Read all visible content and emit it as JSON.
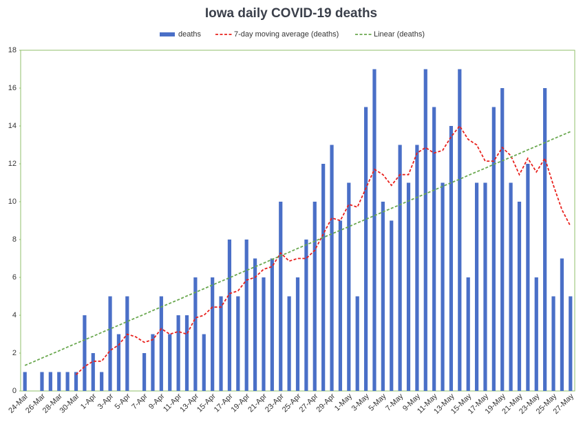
{
  "chart_data": {
    "type": "bar",
    "title": "Iowa daily COVID-19 deaths",
    "categories": [
      "24-Mar",
      null,
      "26-Mar",
      null,
      "28-Mar",
      null,
      "30-Mar",
      null,
      "1-Apr",
      null,
      "3-Apr",
      null,
      "5-Apr",
      null,
      "7-Apr",
      null,
      "9-Apr",
      null,
      "11-Apr",
      null,
      "13-Apr",
      null,
      "15-Apr",
      null,
      "17-Apr",
      null,
      "19-Apr",
      null,
      "21-Apr",
      null,
      "23-Apr",
      null,
      "25-Apr",
      null,
      "27-Apr",
      null,
      "29-Apr",
      null,
      "1-May",
      null,
      "3-May",
      null,
      "5-May",
      null,
      "7-May",
      null,
      "9-May",
      null,
      "11-May",
      null,
      "13-May",
      null,
      "15-May",
      null,
      "17-May",
      null,
      "19-May",
      null,
      "21-May",
      null,
      "23-May",
      null,
      "25-May",
      null,
      "27-May"
    ],
    "series": [
      {
        "name": "deaths",
        "type": "bar",
        "color": "#4a6fc7",
        "values": [
          1,
          0,
          1,
          1,
          1,
          1,
          1,
          4,
          2,
          1,
          5,
          3,
          5,
          0,
          2,
          3,
          5,
          3,
          4,
          4,
          6,
          3,
          6,
          5,
          8,
          5,
          8,
          7,
          6,
          7,
          10,
          5,
          6,
          8,
          10,
          12,
          13,
          9,
          11,
          5,
          15,
          17,
          10,
          9,
          13,
          11,
          13,
          17,
          15,
          11,
          14,
          17,
          6,
          11,
          11,
          15,
          16,
          11,
          10,
          12,
          6,
          16,
          5,
          7,
          5
        ]
      },
      {
        "name": "7-day moving average (deaths)",
        "type": "line",
        "color": "#e8201c",
        "values": [
          null,
          null,
          null,
          null,
          null,
          null,
          0.86,
          1.29,
          1.57,
          1.57,
          2.14,
          2.43,
          3.0,
          2.86,
          2.57,
          2.71,
          3.29,
          3.0,
          3.14,
          3.0,
          3.86,
          4.0,
          4.43,
          4.43,
          5.14,
          5.29,
          5.86,
          6.0,
          6.43,
          6.57,
          7.29,
          6.86,
          7.0,
          7.0,
          7.43,
          8.29,
          9.14,
          9.0,
          9.86,
          9.71,
          10.71,
          11.71,
          11.43,
          10.86,
          11.43,
          11.43,
          12.57,
          12.86,
          12.57,
          12.71,
          13.43,
          14.0,
          13.29,
          13.0,
          12.14,
          12.14,
          12.86,
          12.43,
          11.43,
          12.29,
          11.57,
          12.29,
          10.86,
          9.57,
          8.71
        ]
      },
      {
        "name": "Linear (deaths)",
        "type": "line",
        "color": "#6aa84f",
        "values": [
          1.35,
          1.54,
          1.74,
          1.93,
          2.12,
          2.32,
          2.51,
          2.7,
          2.89,
          3.09,
          3.28,
          3.47,
          3.67,
          3.86,
          4.05,
          4.25,
          4.44,
          4.63,
          4.82,
          5.02,
          5.21,
          5.4,
          5.6,
          5.79,
          5.98,
          6.18,
          6.37,
          6.56,
          6.75,
          6.95,
          7.14,
          7.33,
          7.53,
          7.72,
          7.91,
          8.11,
          8.3,
          8.49,
          8.68,
          8.88,
          9.07,
          9.26,
          9.46,
          9.65,
          9.84,
          10.04,
          10.23,
          10.42,
          10.61,
          10.81,
          11.0,
          11.19,
          11.39,
          11.58,
          11.77,
          11.97,
          12.16,
          12.35,
          12.54,
          12.74,
          12.93,
          13.12,
          13.32,
          13.51,
          13.7
        ]
      }
    ],
    "ylim": [
      0,
      18
    ],
    "yticks": [
      0,
      2,
      4,
      6,
      8,
      10,
      12,
      14,
      16,
      18
    ],
    "grid": false,
    "legend": "top"
  }
}
